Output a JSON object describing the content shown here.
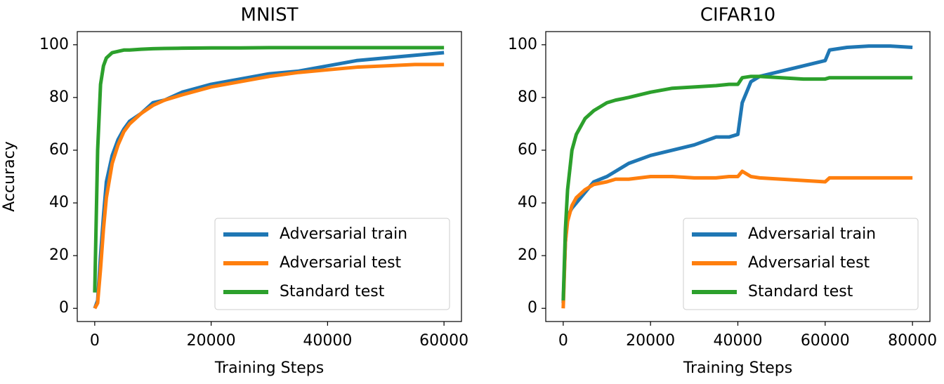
{
  "chart_data": [
    {
      "type": "line",
      "title": "MNIST",
      "xlabel": "Training Steps",
      "ylabel": "Accuracy",
      "x": [
        0,
        500,
        1000,
        1500,
        2000,
        3000,
        4000,
        5000,
        6000,
        8000,
        10000,
        12000,
        15000,
        20000,
        25000,
        30000,
        35000,
        40000,
        45000,
        50000,
        55000,
        60000
      ],
      "series": [
        {
          "name": "Adversarial train",
          "color": "#1f77b4",
          "values": [
            0,
            3,
            20,
            35,
            48,
            58,
            64,
            68,
            71,
            74,
            78,
            79,
            82,
            85,
            87,
            89,
            90,
            92,
            94,
            95,
            96,
            97
          ]
        },
        {
          "name": "Adversarial test",
          "color": "#ff7f0e",
          "values": [
            0,
            2,
            15,
            30,
            42,
            55,
            62,
            67,
            70,
            74,
            77,
            79,
            81,
            84,
            86,
            88,
            89.5,
            90.5,
            91.5,
            92,
            92.5,
            92.5
          ]
        },
        {
          "name": "Standard test",
          "color": "#2ca02c",
          "values": [
            6,
            60,
            85,
            92,
            95,
            97,
            97.5,
            98,
            98,
            98.3,
            98.5,
            98.6,
            98.7,
            98.8,
            98.8,
            98.9,
            98.9,
            98.9,
            98.9,
            98.9,
            98.9,
            98.9
          ]
        }
      ],
      "xlim": [
        -3000,
        63000
      ],
      "ylim": [
        -5,
        105
      ],
      "xticks": [
        0,
        20000,
        40000,
        60000
      ],
      "yticks": [
        0,
        20,
        40,
        60,
        80,
        100
      ],
      "legend": "lower right"
    },
    {
      "type": "line",
      "title": "CIFAR10",
      "xlabel": "Training Steps",
      "x": [
        0,
        500,
        1000,
        2000,
        3000,
        5000,
        7000,
        10000,
        12000,
        15000,
        20000,
        25000,
        30000,
        35000,
        38000,
        40000,
        41000,
        43000,
        45000,
        50000,
        55000,
        60000,
        61000,
        65000,
        70000,
        75000,
        80000
      ],
      "series": [
        {
          "name": "Adversarial train",
          "color": "#1f77b4",
          "values": [
            2,
            25,
            35,
            38,
            40,
            44,
            48,
            50,
            52,
            55,
            58,
            60,
            62,
            65,
            65,
            66,
            78,
            86,
            88,
            90,
            92,
            94,
            98,
            99,
            99.5,
            99.5,
            99
          ]
        },
        {
          "name": "Adversarial test",
          "color": "#ff7f0e",
          "values": [
            0,
            25,
            33,
            39,
            42,
            45,
            47,
            48,
            49,
            49,
            50,
            50,
            49.5,
            49.5,
            50,
            50,
            52,
            50,
            49.5,
            49,
            48.5,
            48,
            49.5,
            49.5,
            49.5,
            49.5,
            49.5
          ]
        },
        {
          "name": "Standard test",
          "color": "#2ca02c",
          "values": [
            3,
            30,
            45,
            60,
            66,
            72,
            75,
            78,
            79,
            80,
            82,
            83.5,
            84,
            84.5,
            85,
            85,
            87.5,
            88,
            88,
            87.5,
            87,
            87,
            87.5,
            87.5,
            87.5,
            87.5,
            87.5
          ]
        }
      ],
      "xlim": [
        -4000,
        84000
      ],
      "ylim": [
        -5,
        105
      ],
      "xticks": [
        0,
        20000,
        40000,
        60000,
        80000
      ],
      "yticks": [
        0,
        20,
        40,
        60,
        80,
        100
      ],
      "legend": "lower right"
    }
  ]
}
